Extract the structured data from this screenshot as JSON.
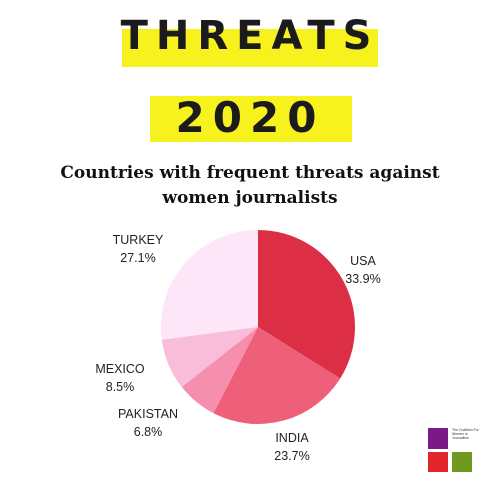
{
  "header": {
    "title_line1": "THREATS",
    "title_line2": "2020",
    "subtitle_line1": "Countries with frequent threats against",
    "subtitle_line2": "women journalists",
    "banner_color": "#f7f21e"
  },
  "chart_data": {
    "type": "pie",
    "title": "Countries with frequent threats against women journalists",
    "labels": [
      "USA",
      "INDIA",
      "PAKISTAN",
      "MEXICO",
      "TURKEY"
    ],
    "values": [
      33.9,
      23.7,
      6.8,
      8.5,
      27.1
    ],
    "value_labels": [
      "33.9%",
      "23.7%",
      "6.8%",
      "8.5%",
      "27.1%"
    ],
    "colors": [
      "#dc2e45",
      "#ee6079",
      "#f68fae",
      "#f9bcd9",
      "#fde6f8"
    ],
    "legend": "none"
  },
  "logo": {
    "text": "The Coalition For Women in Journalism",
    "colors": [
      "#7a1a86",
      "#e3252c",
      "#6e9a1e"
    ]
  }
}
